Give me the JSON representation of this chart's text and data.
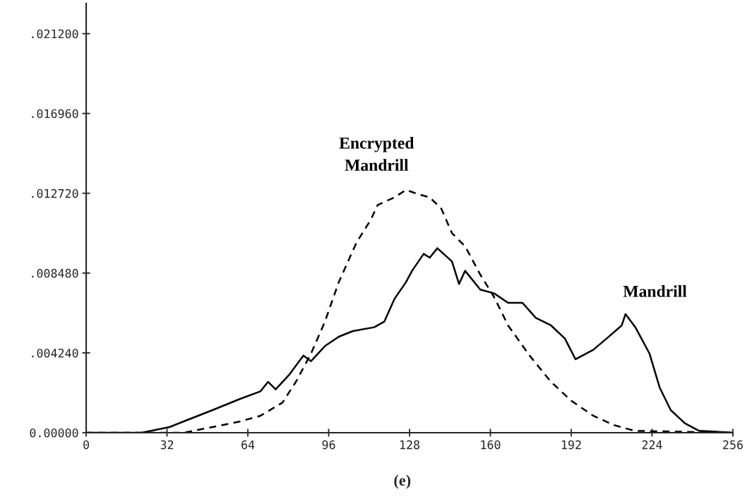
{
  "chart_data": {
    "type": "line",
    "xlim": [
      0,
      256
    ],
    "xticks": [
      0,
      32,
      64,
      96,
      128,
      160,
      192,
      224,
      256
    ],
    "ylim": [
      0,
      0.0228
    ],
    "yticks": [
      {
        "value": 0,
        "label": "0.00000"
      },
      {
        "value": 0.00424,
        "label": ".004240"
      },
      {
        "value": 0.00848,
        "label": ".008480"
      },
      {
        "value": 0.01272,
        "label": ".012720"
      },
      {
        "value": 0.01696,
        "label": ".016960"
      },
      {
        "value": 0.0212,
        "label": ".021200"
      }
    ],
    "grid": false,
    "legend": false,
    "series": [
      {
        "name": "Mandrill",
        "color": "#000000",
        "line_style": "solid",
        "x": [
          0,
          22,
          33,
          38.6,
          50,
          61,
          69,
          72,
          75,
          80.5,
          86,
          89,
          94.5,
          100,
          105.6,
          114,
          118,
          122,
          126.6,
          129,
          133.6,
          136,
          139,
          144.8,
          147.6,
          150,
          156,
          161.5,
          167,
          172.7,
          178,
          184,
          189.5,
          193.7,
          200.7,
          206,
          212,
          213.5,
          217.4,
          223,
          227,
          231.4,
          237,
          242.6,
          256
        ],
        "values": [
          0,
          0,
          0.0003,
          0.0006,
          0.0012,
          0.0018,
          0.0022,
          0.0027,
          0.0023,
          0.0031,
          0.0041,
          0.0038,
          0.0046,
          0.0051,
          0.0054,
          0.0056,
          0.0059,
          0.0071,
          0.008,
          0.0086,
          0.0095,
          0.0093,
          0.0098,
          0.0091,
          0.0079,
          0.0086,
          0.0076,
          0.0074,
          0.0069,
          0.0069,
          0.0061,
          0.0057,
          0.005,
          0.0039,
          0.0044,
          0.005,
          0.0057,
          0.0063,
          0.0056,
          0.0042,
          0.0024,
          0.0012,
          0.0005,
          0.0001,
          0
        ]
      },
      {
        "name": "Encrypted\nMandrill",
        "color": "#000000",
        "line_style": "dashed",
        "x": [
          0,
          33,
          38.6,
          50,
          61,
          69,
          77.7,
          83,
          89,
          94.5,
          100,
          107,
          112.6,
          115.4,
          122,
          126.6,
          130.8,
          136,
          140.6,
          144.8,
          150,
          156,
          161.5,
          167,
          175.5,
          184,
          192,
          200.7,
          209,
          217,
          256
        ],
        "values": [
          0,
          0,
          0,
          0.0003,
          0.0006,
          0.0009,
          0.0016,
          0.0027,
          0.0042,
          0.0059,
          0.008,
          0.0101,
          0.0113,
          0.0121,
          0.0125,
          0.0129,
          0.0127,
          0.0125,
          0.0119,
          0.0106,
          0.0099,
          0.0084,
          0.0072,
          0.0057,
          0.0041,
          0.0027,
          0.0017,
          0.0009,
          0.0004,
          0.0001,
          0
        ]
      }
    ],
    "annotations": [
      "(e)"
    ]
  }
}
